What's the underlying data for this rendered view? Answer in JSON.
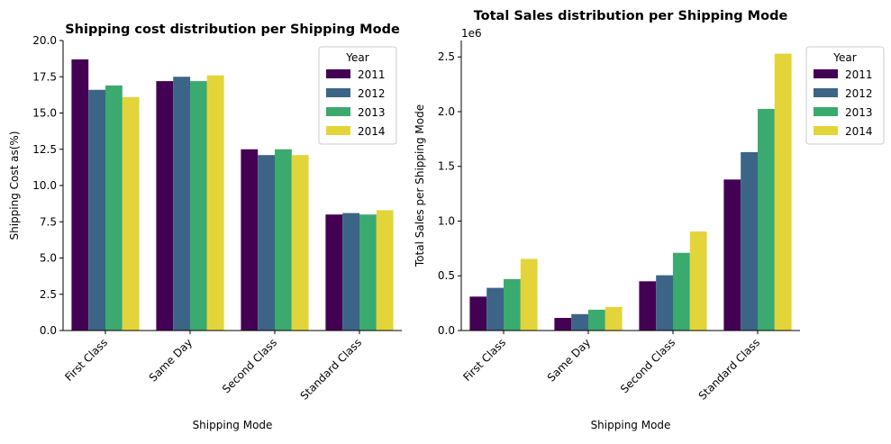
{
  "colors": {
    "2011": "#440154",
    "2012": "#3b6486",
    "2013": "#3aaa6e",
    "2014": "#e3d539"
  },
  "chart_data": [
    {
      "type": "bar",
      "title": "Shipping cost distribution per Shipping Mode",
      "xlabel": "Shipping Mode",
      "ylabel": "Shipping Cost as(%)",
      "categories": [
        "First Class",
        "Same Day",
        "Second Class",
        "Standard Class"
      ],
      "series": [
        {
          "name": "2011",
          "values": [
            18.7,
            17.2,
            12.5,
            8.0
          ]
        },
        {
          "name": "2012",
          "values": [
            16.6,
            17.5,
            12.1,
            8.1
          ]
        },
        {
          "name": "2013",
          "values": [
            16.9,
            17.2,
            12.5,
            8.0
          ]
        },
        {
          "name": "2014",
          "values": [
            16.1,
            17.6,
            12.1,
            8.3
          ]
        }
      ],
      "ylim": [
        0,
        20
      ],
      "yticks": [
        "0.0",
        "2.5",
        "5.0",
        "7.5",
        "10.0",
        "12.5",
        "15.0",
        "17.5",
        "20.0"
      ],
      "legend": {
        "title": "Year",
        "placement": "top-right"
      },
      "grid": false
    },
    {
      "type": "bar",
      "title": "Total Sales distribution per Shipping Mode",
      "xlabel": "Shipping Mode",
      "ylabel": "Total Sales per Shipping Mode",
      "offset_label": "1e6",
      "categories": [
        "First Class",
        "Same Day",
        "Second Class",
        "Standard Class"
      ],
      "series": [
        {
          "name": "2011",
          "values": [
            310000,
            115000,
            450000,
            1380000
          ]
        },
        {
          "name": "2012",
          "values": [
            390000,
            150000,
            505000,
            1630000
          ]
        },
        {
          "name": "2013",
          "values": [
            470000,
            190000,
            710000,
            2025000
          ]
        },
        {
          "name": "2014",
          "values": [
            655000,
            215000,
            905000,
            2530000
          ]
        }
      ],
      "ylim": [
        0,
        2650000
      ],
      "yticks": [
        "0.0",
        "0.5",
        "1.0",
        "1.5",
        "2.0",
        "2.5"
      ],
      "legend": {
        "title": "Year",
        "placement": "outside-right"
      },
      "grid": false
    }
  ]
}
